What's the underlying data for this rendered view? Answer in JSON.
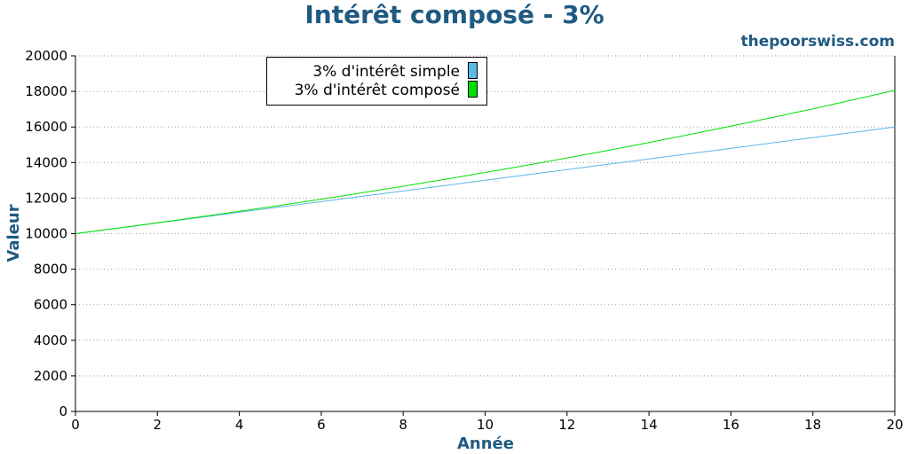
{
  "chart_data": {
    "type": "line",
    "title": "Intérêt composé - 3%",
    "watermark": "thepoorswiss.com",
    "xlabel": "Année",
    "ylabel": "Valeur",
    "xlim": [
      0,
      20
    ],
    "ylim": [
      0,
      20000
    ],
    "x_ticks": [
      "0",
      "2",
      "4",
      "6",
      "8",
      "10",
      "12",
      "14",
      "16",
      "18",
      "20"
    ],
    "y_ticks": [
      "0",
      "2000",
      "4000",
      "6000",
      "8000",
      "10000",
      "12000",
      "14000",
      "16000",
      "18000",
      "20000"
    ],
    "grid": "horizontal dotted",
    "legend_position": "top-left",
    "x": [
      0,
      1,
      2,
      3,
      4,
      5,
      6,
      7,
      8,
      9,
      10,
      11,
      12,
      13,
      14,
      15,
      16,
      17,
      18,
      19,
      20
    ],
    "series": [
      {
        "name": "3% d'intérêt simple",
        "color": "#5bb8e6",
        "values": [
          10000,
          10300,
          10600,
          10900,
          11200,
          11500,
          11800,
          12100,
          12400,
          12700,
          13000,
          13300,
          13600,
          13900,
          14200,
          14500,
          14800,
          15100,
          15400,
          15700,
          16000
        ]
      },
      {
        "name": "3% d'intérêt composé",
        "color": "#00e000",
        "values": [
          10000,
          10300,
          10609,
          10927,
          11255,
          11593,
          11941,
          12299,
          12668,
          13048,
          13439,
          13842,
          14258,
          14685,
          15126,
          15580,
          16047,
          16528,
          17024,
          17535,
          18061
        ]
      }
    ]
  }
}
